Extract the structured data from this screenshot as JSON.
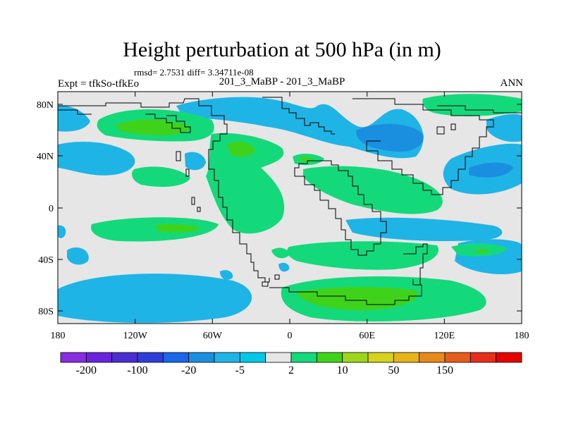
{
  "title": "Height perturbation at 500 hPa (in m)",
  "stats_line": "rmsd= 2.7531 diff= 3.34711e-08",
  "left_label": "Expt = tfkSo-tfkEo",
  "center_label": "201_3_MaBP - 201_3_MaBP",
  "right_label": "ANN",
  "x_ticks": [
    "180",
    "120W",
    "60W",
    "0",
    "60E",
    "120E",
    "180"
  ],
  "y_ticks": [
    "80N",
    "40N",
    "0",
    "40S",
    "80S"
  ],
  "colorbar": {
    "colors": [
      "#8a2be2",
      "#6a22e0",
      "#4b2ecf",
      "#2d3ed8",
      "#1a66e8",
      "#1a8fe0",
      "#1fb4e6",
      "#00c8e6",
      "#e6e6e6",
      "#14d97a",
      "#3fd21a",
      "#9ed61a",
      "#d6d11a",
      "#e6b41a",
      "#e68a1a",
      "#e65c1a",
      "#e62e1a",
      "#e60000"
    ],
    "labels": [
      "-200",
      "-100",
      "-20",
      "-5",
      "2",
      "10",
      "50",
      "150"
    ]
  },
  "map_colors": {
    "background": "#e6e6e6",
    "light_blue": "#1fb4e6",
    "mid_blue": "#1a8fe0",
    "green": "#14d97a",
    "bright_green": "#3fd21a",
    "coast": "#000000"
  }
}
